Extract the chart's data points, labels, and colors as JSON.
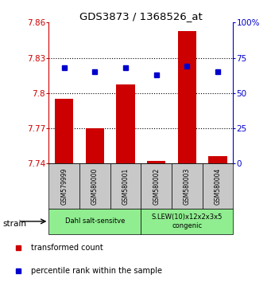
{
  "title": "GDS3873 / 1368526_at",
  "samples": [
    "GSM579999",
    "GSM580000",
    "GSM580001",
    "GSM580002",
    "GSM580003",
    "GSM580004"
  ],
  "transformed_counts": [
    7.795,
    7.77,
    7.807,
    7.742,
    7.853,
    7.746
  ],
  "percentile_ranks": [
    68,
    65,
    68,
    63,
    69,
    65
  ],
  "ylim_left": [
    7.74,
    7.86
  ],
  "ylim_right": [
    0,
    100
  ],
  "yticks_left": [
    7.74,
    7.77,
    7.8,
    7.83,
    7.86
  ],
  "yticks_right": [
    0,
    25,
    50,
    75,
    100
  ],
  "ytick_labels_left": [
    "7.74",
    "7.77",
    "7.8",
    "7.83",
    "7.86"
  ],
  "ytick_labels_right": [
    "0",
    "25",
    "50",
    "75",
    "100%"
  ],
  "hlines": [
    7.77,
    7.8,
    7.83
  ],
  "bar_color": "#cc0000",
  "dot_color": "#0000cc",
  "bar_bottom": 7.74,
  "strain_label": "strain",
  "legend_red_label": "transformed count",
  "legend_blue_label": "percentile rank within the sample",
  "left_axis_color": "#cc0000",
  "right_axis_color": "#0000cc",
  "sample_box_color": "#c8c8c8",
  "group_color": "#90ee90",
  "bar_width": 0.6,
  "group_defs": [
    {
      "indices": [
        0,
        1,
        2
      ],
      "label": "Dahl salt-sensitve"
    },
    {
      "indices": [
        3,
        4,
        5
      ],
      "label": "S.LEW(10)x12x2x3x5\ncongenic"
    }
  ]
}
